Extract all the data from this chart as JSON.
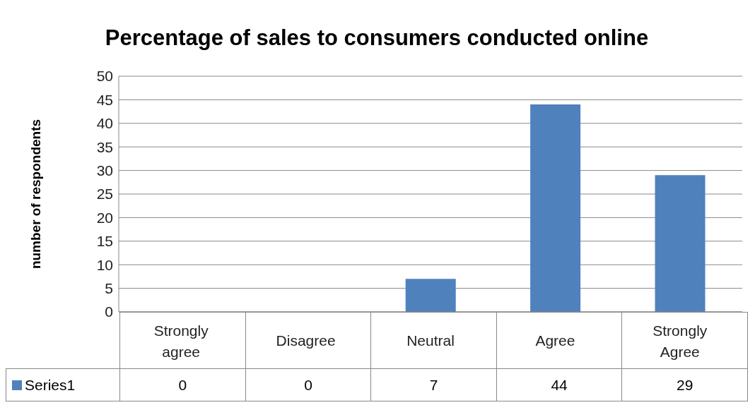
{
  "chart_data": {
    "type": "bar",
    "title": "Percentage of sales to consumers conducted online",
    "ylabel": "number of respondents",
    "categories": [
      "Strongly agree",
      "Disagree",
      "Neutral",
      "Agree",
      "Strongly Agree"
    ],
    "series": [
      {
        "name": "Series1",
        "color": "#4f81bd",
        "values": [
          0,
          0,
          7,
          44,
          29
        ]
      }
    ],
    "ylim": [
      0,
      50
    ],
    "yticks": [
      0,
      5,
      10,
      15,
      20,
      25,
      30,
      35,
      40,
      45,
      50
    ],
    "grid": "y",
    "legend": "bottom",
    "data_labels": true
  }
}
